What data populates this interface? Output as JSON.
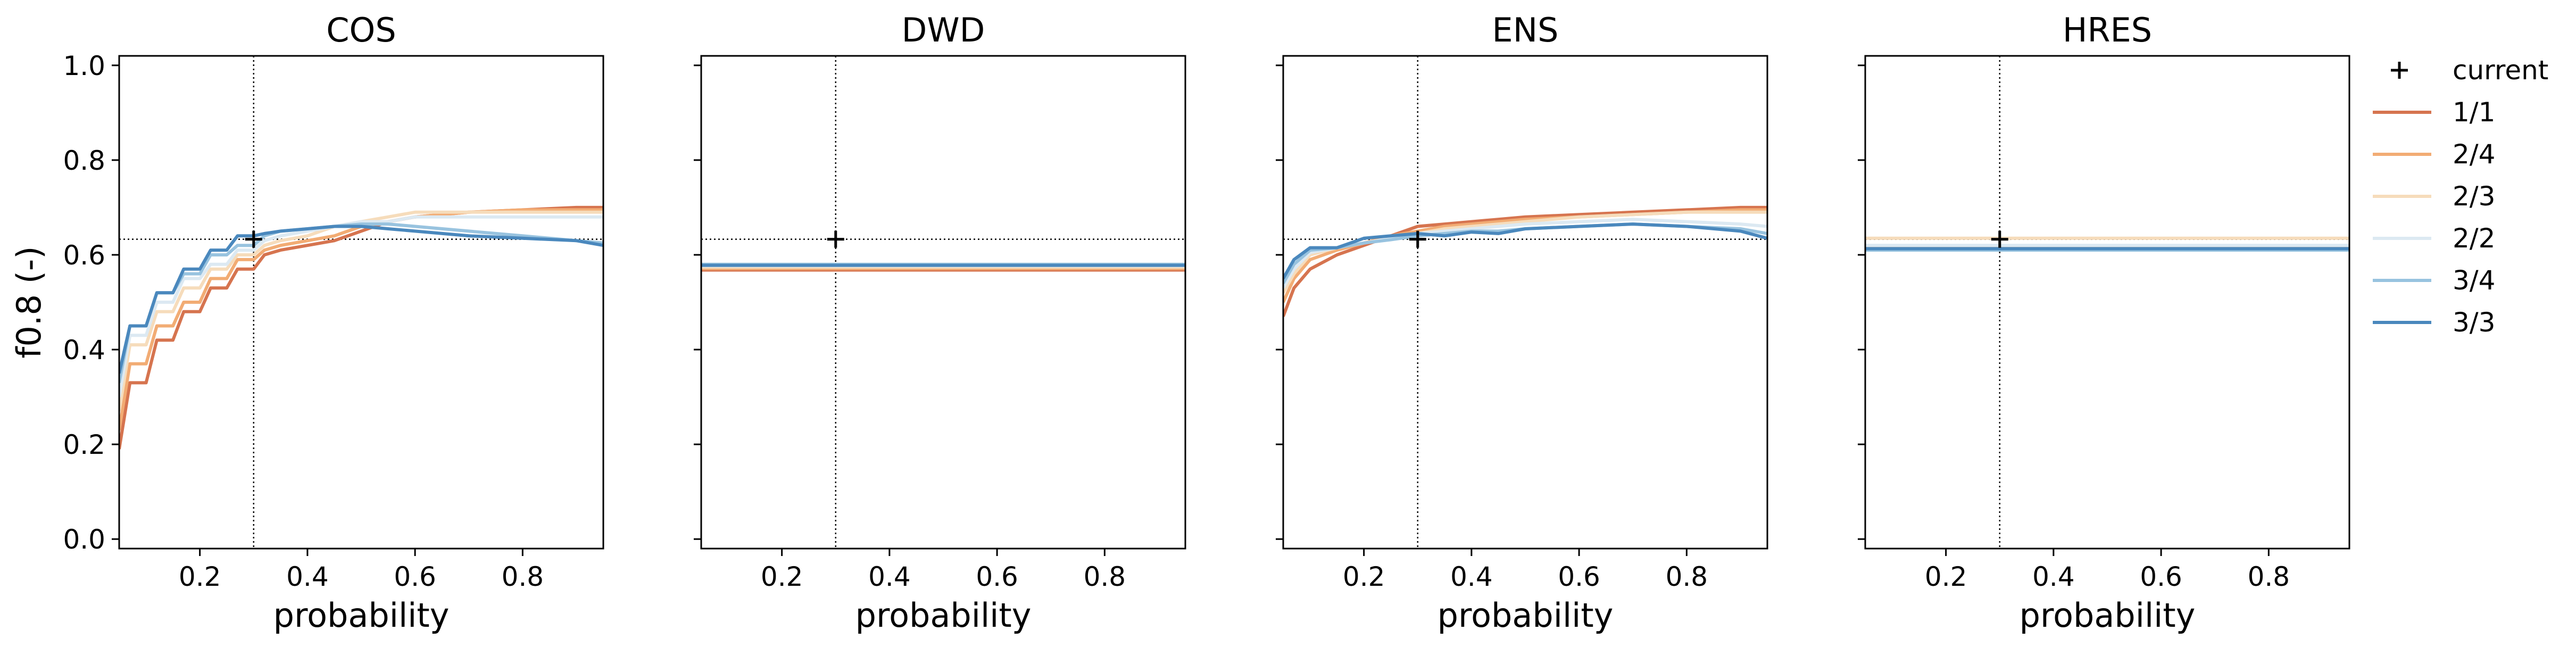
{
  "chart_data": {
    "type": "line",
    "ylabel": "f0.8 (-)",
    "xlim": [
      0.05,
      0.95
    ],
    "ylim": [
      -0.02,
      1.02
    ],
    "xticks": [
      0.2,
      0.4,
      0.6,
      0.8
    ],
    "yticks": [
      0.0,
      0.2,
      0.4,
      0.6,
      0.8,
      1.0
    ],
    "xtick_labels": [
      "0.2",
      "0.4",
      "0.6",
      "0.8"
    ],
    "ytick_labels": [
      "0.0",
      "0.2",
      "0.4",
      "0.6",
      "0.8",
      "1.0"
    ],
    "sharey": true,
    "grid": false,
    "legend": {
      "placement": "outside-right-top",
      "current_label": "current",
      "entries": [
        {
          "name": "1/1",
          "color": "#d6744f"
        },
        {
          "name": "2/4",
          "color": "#f2ac74"
        },
        {
          "name": "2/3",
          "color": "#f6dcbb"
        },
        {
          "name": "2/2",
          "color": "#dce9f2"
        },
        {
          "name": "3/4",
          "color": "#98c3df"
        },
        {
          "name": "3/3",
          "color": "#4a88bd"
        }
      ]
    },
    "panels": [
      {
        "title": "COS",
        "xlabel": "probability",
        "current": {
          "x": 0.3,
          "y": 0.633
        },
        "series": [
          {
            "name": "1/1",
            "x": [
              0.05,
              0.07,
              0.1,
              0.12,
              0.15,
              0.17,
              0.2,
              0.22,
              0.25,
              0.27,
              0.3,
              0.32,
              0.35,
              0.4,
              0.45,
              0.5,
              0.55,
              0.6,
              0.7,
              0.8,
              0.9,
              0.95
            ],
            "y": [
              0.19,
              0.33,
              0.33,
              0.42,
              0.42,
              0.48,
              0.48,
              0.53,
              0.53,
              0.57,
              0.57,
              0.6,
              0.61,
              0.62,
              0.63,
              0.65,
              0.67,
              0.68,
              0.69,
              0.695,
              0.7,
              0.7
            ]
          },
          {
            "name": "2/4",
            "x": [
              0.05,
              0.07,
              0.1,
              0.12,
              0.15,
              0.17,
              0.2,
              0.22,
              0.25,
              0.27,
              0.3,
              0.32,
              0.35,
              0.4,
              0.45,
              0.5,
              0.55,
              0.6,
              0.7,
              0.8,
              0.9,
              0.95
            ],
            "y": [
              0.23,
              0.37,
              0.37,
              0.45,
              0.45,
              0.5,
              0.5,
              0.55,
              0.55,
              0.59,
              0.59,
              0.61,
              0.62,
              0.63,
              0.64,
              0.66,
              0.67,
              0.68,
              0.69,
              0.695,
              0.695,
              0.695
            ]
          },
          {
            "name": "2/3",
            "x": [
              0.05,
              0.07,
              0.1,
              0.12,
              0.15,
              0.17,
              0.2,
              0.22,
              0.25,
              0.27,
              0.3,
              0.32,
              0.35,
              0.4,
              0.45,
              0.5,
              0.55,
              0.6,
              0.7,
              0.8,
              0.9,
              0.95
            ],
            "y": [
              0.27,
              0.41,
              0.41,
              0.48,
              0.48,
              0.53,
              0.53,
              0.57,
              0.57,
              0.6,
              0.6,
              0.62,
              0.63,
              0.64,
              0.66,
              0.67,
              0.68,
              0.69,
              0.69,
              0.69,
              0.69,
              0.69
            ]
          },
          {
            "name": "2/2",
            "x": [
              0.05,
              0.07,
              0.1,
              0.12,
              0.15,
              0.17,
              0.2,
              0.22,
              0.25,
              0.27,
              0.3,
              0.32,
              0.35,
              0.4,
              0.45,
              0.5,
              0.55,
              0.6,
              0.7,
              0.8,
              0.9,
              0.95
            ],
            "y": [
              0.3,
              0.43,
              0.43,
              0.5,
              0.5,
              0.55,
              0.55,
              0.58,
              0.58,
              0.61,
              0.61,
              0.63,
              0.64,
              0.65,
              0.66,
              0.67,
              0.67,
              0.68,
              0.68,
              0.68,
              0.68,
              0.68
            ]
          },
          {
            "name": "3/4",
            "x": [
              0.05,
              0.07,
              0.1,
              0.12,
              0.15,
              0.17,
              0.2,
              0.22,
              0.25,
              0.27,
              0.3,
              0.32,
              0.35,
              0.4,
              0.45,
              0.5,
              0.55,
              0.6,
              0.7,
              0.8,
              0.9,
              0.95
            ],
            "y": [
              0.33,
              0.45,
              0.45,
              0.52,
              0.52,
              0.56,
              0.56,
              0.6,
              0.6,
              0.62,
              0.62,
              0.64,
              0.65,
              0.655,
              0.66,
              0.665,
              0.665,
              0.66,
              0.65,
              0.64,
              0.63,
              0.625
            ]
          },
          {
            "name": "3/3",
            "x": [
              0.05,
              0.07,
              0.1,
              0.12,
              0.15,
              0.17,
              0.2,
              0.22,
              0.25,
              0.27,
              0.3,
              0.32,
              0.35,
              0.4,
              0.45,
              0.5,
              0.55,
              0.6,
              0.7,
              0.8,
              0.9,
              0.95
            ],
            "y": [
              0.35,
              0.45,
              0.45,
              0.52,
              0.52,
              0.57,
              0.57,
              0.61,
              0.61,
              0.64,
              0.64,
              0.645,
              0.65,
              0.655,
              0.66,
              0.66,
              0.655,
              0.65,
              0.64,
              0.635,
              0.63,
              0.62
            ]
          }
        ]
      },
      {
        "title": "DWD",
        "xlabel": "probability",
        "current": {
          "x": 0.3,
          "y": 0.633
        },
        "series": [
          {
            "name": "1/1",
            "x": [
              0.05,
              0.95
            ],
            "y": [
              0.568,
              0.568
            ]
          },
          {
            "name": "2/4",
            "x": [
              0.05,
              0.95
            ],
            "y": [
              0.571,
              0.571
            ]
          },
          {
            "name": "2/3",
            "x": [
              0.05,
              0.95
            ],
            "y": [
              0.574,
              0.574
            ]
          },
          {
            "name": "2/2",
            "x": [
              0.05,
              0.95
            ],
            "y": [
              0.577,
              0.577
            ]
          },
          {
            "name": "3/4",
            "x": [
              0.05,
              0.95
            ],
            "y": [
              0.58,
              0.58
            ]
          },
          {
            "name": "3/3",
            "x": [
              0.05,
              0.95
            ],
            "y": [
              0.578,
              0.578
            ]
          }
        ]
      },
      {
        "title": "ENS",
        "xlabel": "probability",
        "current": {
          "x": 0.3,
          "y": 0.633
        },
        "series": [
          {
            "name": "1/1",
            "x": [
              0.05,
              0.07,
              0.1,
              0.15,
              0.2,
              0.25,
              0.3,
              0.35,
              0.4,
              0.45,
              0.5,
              0.6,
              0.7,
              0.8,
              0.9,
              0.95
            ],
            "y": [
              0.47,
              0.53,
              0.57,
              0.6,
              0.62,
              0.64,
              0.66,
              0.665,
              0.67,
              0.675,
              0.68,
              0.685,
              0.69,
              0.695,
              0.7,
              0.7
            ]
          },
          {
            "name": "2/4",
            "x": [
              0.05,
              0.07,
              0.1,
              0.15,
              0.2,
              0.25,
              0.3,
              0.35,
              0.4,
              0.45,
              0.5,
              0.6,
              0.7,
              0.8,
              0.9,
              0.95
            ],
            "y": [
              0.5,
              0.55,
              0.59,
              0.61,
              0.625,
              0.64,
              0.65,
              0.66,
              0.665,
              0.67,
              0.675,
              0.68,
              0.685,
              0.69,
              0.695,
              0.695
            ]
          },
          {
            "name": "2/3",
            "x": [
              0.05,
              0.07,
              0.1,
              0.15,
              0.2,
              0.25,
              0.3,
              0.35,
              0.4,
              0.45,
              0.5,
              0.6,
              0.7,
              0.8,
              0.9,
              0.95
            ],
            "y": [
              0.52,
              0.56,
              0.6,
              0.615,
              0.625,
              0.635,
              0.645,
              0.655,
              0.66,
              0.665,
              0.67,
              0.68,
              0.685,
              0.69,
              0.69,
              0.69
            ]
          },
          {
            "name": "2/2",
            "x": [
              0.05,
              0.07,
              0.1,
              0.15,
              0.2,
              0.25,
              0.3,
              0.35,
              0.4,
              0.45,
              0.5,
              0.6,
              0.7,
              0.8,
              0.9,
              0.95
            ],
            "y": [
              0.53,
              0.57,
              0.605,
              0.615,
              0.625,
              0.635,
              0.645,
              0.65,
              0.655,
              0.66,
              0.665,
              0.67,
              0.675,
              0.67,
              0.665,
              0.66
            ]
          },
          {
            "name": "3/4",
            "x": [
              0.05,
              0.07,
              0.1,
              0.15,
              0.2,
              0.25,
              0.3,
              0.35,
              0.4,
              0.45,
              0.5,
              0.6,
              0.7,
              0.8,
              0.9,
              0.95
            ],
            "y": [
              0.54,
              0.58,
              0.61,
              0.615,
              0.625,
              0.632,
              0.64,
              0.645,
              0.65,
              0.65,
              0.655,
              0.66,
              0.665,
              0.66,
              0.655,
              0.645
            ]
          },
          {
            "name": "3/3",
            "x": [
              0.05,
              0.07,
              0.1,
              0.15,
              0.2,
              0.25,
              0.3,
              0.35,
              0.4,
              0.45,
              0.5,
              0.6,
              0.7,
              0.8,
              0.9,
              0.95
            ],
            "y": [
              0.55,
              0.59,
              0.615,
              0.615,
              0.635,
              0.64,
              0.645,
              0.64,
              0.648,
              0.645,
              0.655,
              0.66,
              0.665,
              0.66,
              0.65,
              0.635
            ]
          }
        ]
      },
      {
        "title": "HRES",
        "xlabel": "probability",
        "current": {
          "x": 0.3,
          "y": 0.633
        },
        "series": [
          {
            "name": "1/1",
            "x": [
              0.05,
              0.95
            ],
            "y": [
              0.616,
              0.616
            ]
          },
          {
            "name": "2/4",
            "x": [
              0.05,
              0.95
            ],
            "y": [
              0.618,
              0.618
            ]
          },
          {
            "name": "2/3",
            "x": [
              0.05,
              0.95
            ],
            "y": [
              0.635,
              0.635
            ]
          },
          {
            "name": "2/2",
            "x": [
              0.05,
              0.95
            ],
            "y": [
              0.62,
              0.62
            ]
          },
          {
            "name": "3/4",
            "x": [
              0.05,
              0.95
            ],
            "y": [
              0.61,
              0.61
            ]
          },
          {
            "name": "3/3",
            "x": [
              0.05,
              0.95
            ],
            "y": [
              0.613,
              0.613
            ]
          }
        ]
      }
    ]
  }
}
